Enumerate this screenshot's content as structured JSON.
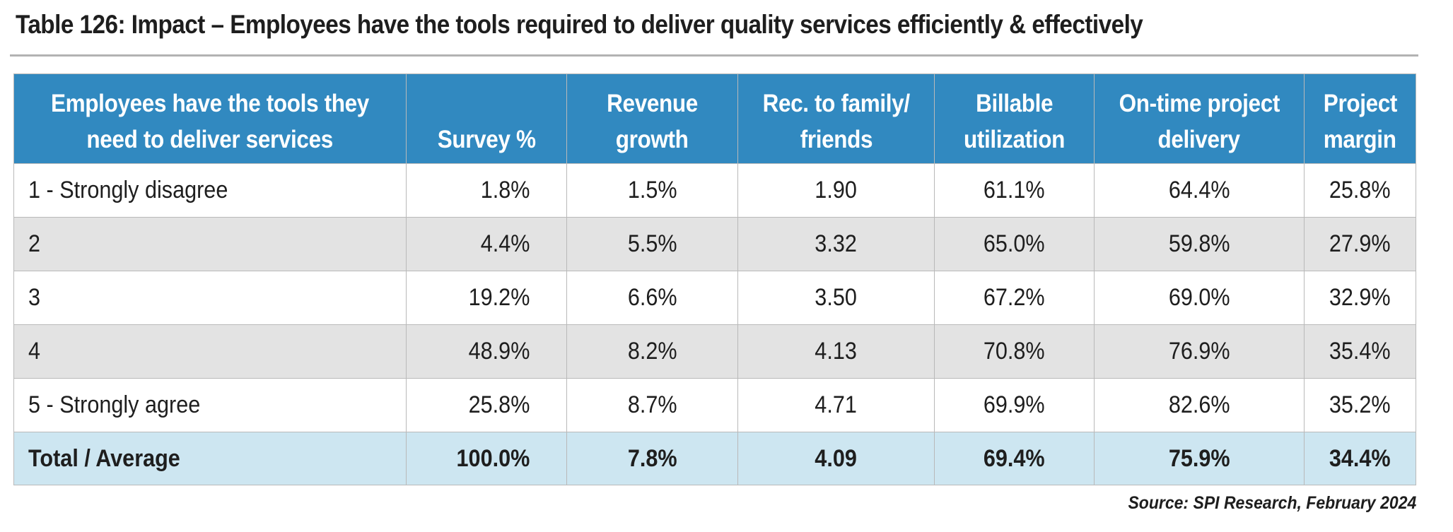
{
  "title": "Table 126:  Impact – Employees have the tools required to deliver quality services efficiently & effectively",
  "table": {
    "headers": [
      [
        "Employees have the tools they",
        "need to deliver services"
      ],
      [
        "Survey %"
      ],
      [
        "Revenue",
        "growth"
      ],
      [
        "Rec. to family/",
        "friends"
      ],
      [
        "Billable",
        "utilization"
      ],
      [
        "On-time project",
        "delivery"
      ],
      [
        "Project",
        "margin"
      ]
    ],
    "rows": [
      [
        "1 - Strongly disagree",
        "1.8%",
        "1.5%",
        "1.90",
        "61.1%",
        "64.4%",
        "25.8%"
      ],
      [
        "2",
        "4.4%",
        "5.5%",
        "3.32",
        "65.0%",
        "59.8%",
        "27.9%"
      ],
      [
        "3",
        "19.2%",
        "6.6%",
        "3.50",
        "67.2%",
        "69.0%",
        "32.9%"
      ],
      [
        "4",
        "48.9%",
        "8.2%",
        "4.13",
        "70.8%",
        "76.9%",
        "35.4%"
      ],
      [
        "5 - Strongly agree",
        "25.8%",
        "8.7%",
        "4.71",
        "69.9%",
        "82.6%",
        "35.2%"
      ]
    ],
    "total": [
      "Total / Average",
      "100.0%",
      "7.8%",
      "4.09",
      "69.4%",
      "75.9%",
      "34.4%"
    ]
  },
  "source": "Source: SPI Research, February 2024",
  "colors": {
    "header_bg": "#3189c0",
    "row_alt_bg": "#e3e3e3",
    "total_bg": "#cde6f1"
  }
}
